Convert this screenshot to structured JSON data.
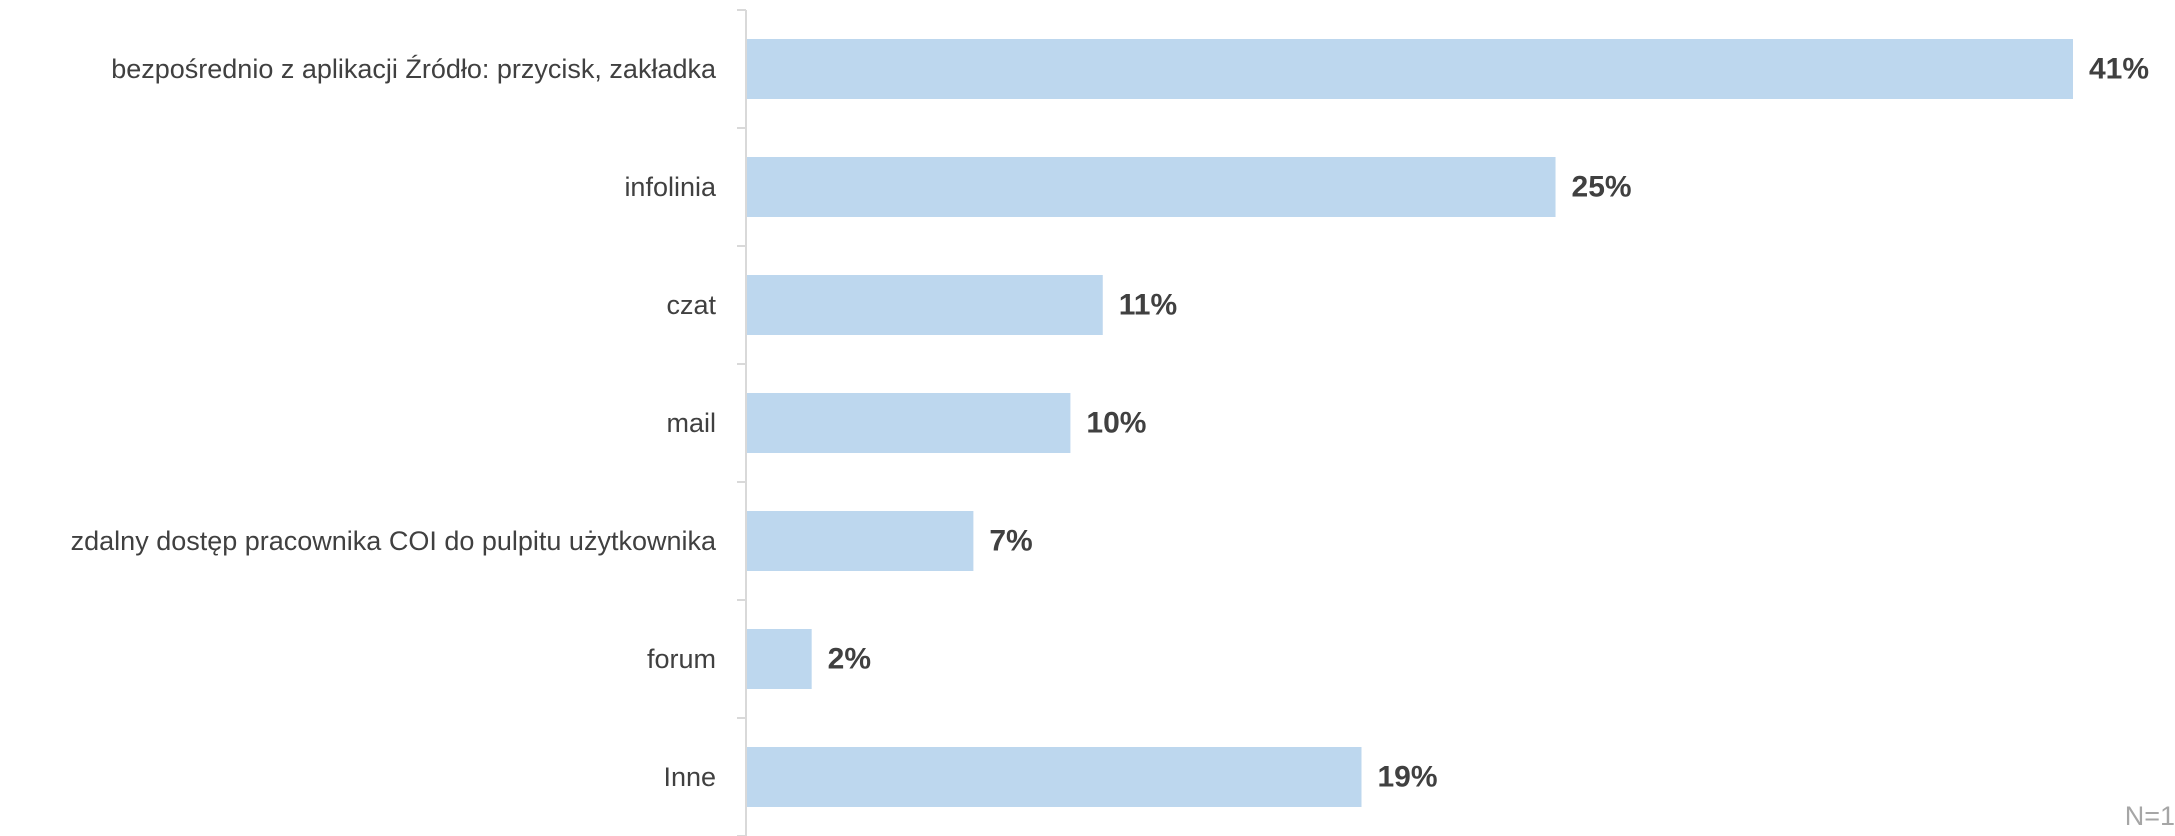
{
  "chart_data": {
    "type": "bar",
    "orientation": "horizontal",
    "categories": [
      "bezpośrednio z aplikacji Źródło: przycisk, zakładka",
      "infolinia",
      "czat",
      "mail",
      "zdalny dostęp pracownika COI do pulpitu użytkownika",
      "forum",
      "Inne"
    ],
    "values": [
      41,
      25,
      11,
      10,
      7,
      2,
      19
    ],
    "value_labels": [
      "41%",
      "25%",
      "11%",
      "10%",
      "7%",
      "2%",
      "19%"
    ],
    "unit": "%",
    "xlim": [
      0,
      41
    ],
    "bar_color": "#bdd7ee",
    "label_color": "#404040",
    "axis_color": "#d9d9d9",
    "grid": false,
    "legend": "none"
  },
  "note": "N=1"
}
